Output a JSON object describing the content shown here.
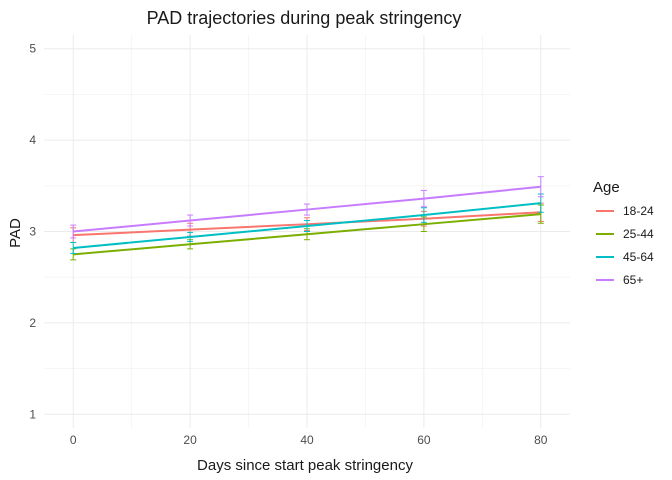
{
  "chart_data": {
    "type": "line",
    "title": "PAD trajectories during peak stringency",
    "xlabel": "Days since start peak stringency",
    "ylabel": "PAD",
    "xlim": [
      -5,
      85
    ],
    "ylim": [
      0.85,
      5.15
    ],
    "x_ticks": [
      0,
      20,
      40,
      60,
      80
    ],
    "y_ticks": [
      1,
      2,
      3,
      4,
      5
    ],
    "x_minor": [
      10,
      30,
      50,
      70
    ],
    "y_minor": [
      1.5,
      2.5,
      3.5,
      4.5
    ],
    "grid": true,
    "legend": {
      "title": "Age",
      "placement": "right"
    },
    "x": [
      0,
      20,
      40,
      60,
      80
    ],
    "series": [
      {
        "name": "18-24",
        "color": "#F8766D",
        "values": [
          2.96,
          3.02,
          3.08,
          3.14,
          3.21
        ],
        "err_low": [
          2.88,
          2.95,
          3.01,
          3.06,
          3.11
        ],
        "err_high": [
          3.04,
          3.09,
          3.15,
          3.22,
          3.31
        ]
      },
      {
        "name": "25-44",
        "color": "#7CAE00",
        "values": [
          2.75,
          2.86,
          2.97,
          3.08,
          3.19
        ],
        "err_low": [
          2.69,
          2.81,
          2.91,
          3.0,
          3.09
        ],
        "err_high": [
          2.81,
          2.91,
          3.03,
          3.16,
          3.29
        ]
      },
      {
        "name": "45-64",
        "color": "#00BFC4",
        "values": [
          2.82,
          2.94,
          3.06,
          3.18,
          3.31
        ],
        "err_low": [
          2.76,
          2.89,
          3.0,
          3.1,
          3.21
        ],
        "err_high": [
          2.88,
          2.99,
          3.12,
          3.26,
          3.41
        ]
      },
      {
        "name": "65+",
        "color": "#C77CFF",
        "values": [
          3.0,
          3.12,
          3.24,
          3.36,
          3.49
        ],
        "err_low": [
          2.93,
          3.06,
          3.18,
          3.27,
          3.38
        ],
        "err_high": [
          3.07,
          3.18,
          3.3,
          3.45,
          3.6
        ]
      }
    ]
  }
}
